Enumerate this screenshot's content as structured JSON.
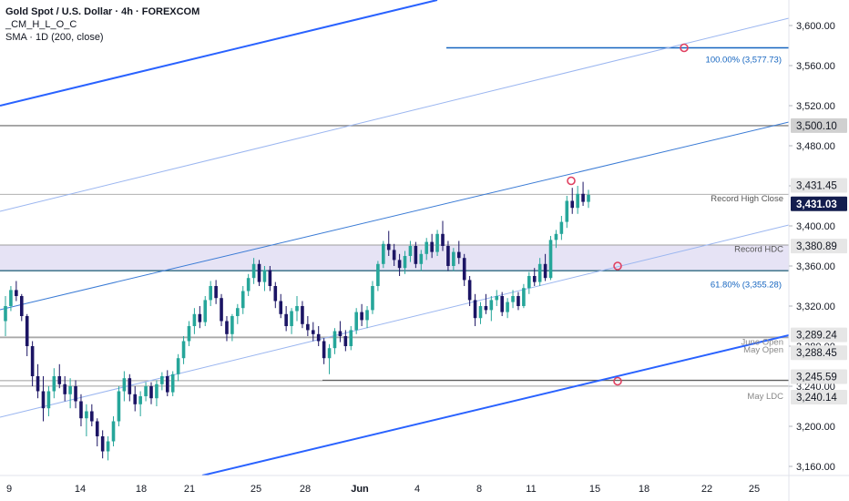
{
  "legend": {
    "title": "Gold Spot / U.S. Dollar · 4h · FOREXCOM",
    "indicator1": "_CM_H_L_O_C",
    "indicator2": "SMA · 1D (200, close)"
  },
  "colors": {
    "up": "#26a69a",
    "down": "#1b1464",
    "channel": "#2962ff",
    "fib": "#1565c0",
    "zone": "#e6e3f5",
    "levelLine": "#9e9e9e",
    "marker": "#e04060",
    "badgeDark": "#131d4e"
  },
  "chart_data": {
    "type": "candlestick",
    "instrument": "Gold Spot / U.S. Dollar",
    "timeframe": "4h",
    "ylim": [
      3140,
      3640
    ],
    "y_ticks": [
      3160,
      3200,
      3240,
      3280,
      3320,
      3360,
      3400,
      3440,
      3480,
      3520,
      3560,
      3600
    ],
    "y_tick_labels": [
      "3,160.00",
      "3,200.00",
      "3,240.00",
      "3,280.00",
      "3,320.00",
      "3,360.00",
      "3,400.00",
      "3,440.00",
      "3,480.00",
      "3,520.00",
      "3,560.00",
      "3,600.00"
    ],
    "x_tick_labels": [
      "9",
      "14",
      "18",
      "21",
      "25",
      "28",
      "Jun",
      "4",
      "8",
      "11",
      "15",
      "18",
      "22",
      "25"
    ],
    "zone": {
      "from": 3355.28,
      "to": 3380.89
    },
    "levels": [
      {
        "value": 3500.1,
        "label": "",
        "badge": "3,500.10",
        "style": "dark-gray"
      },
      {
        "value": 3431.45,
        "label": "Record High Close",
        "badge": "3,431.45",
        "style": "gray"
      },
      {
        "value": 3431.03,
        "label": "",
        "badge": "3,431.03",
        "style": "current"
      },
      {
        "value": 3380.89,
        "label": "Record HDC",
        "badge": "3,380.89",
        "style": "gray"
      },
      {
        "value": 3355.28,
        "label": "61.80% (3,355.28)",
        "badge": "",
        "style": "fib"
      },
      {
        "value": 3289.24,
        "label": "June Open",
        "badge": "3,289.24",
        "style": "gray"
      },
      {
        "value": 3288.45,
        "label": "May Open",
        "badge": "3,288.45",
        "style": "gray"
      },
      {
        "value": 3245.59,
        "label": "",
        "badge": "3,245.59",
        "style": "gray"
      },
      {
        "value": 3240.14,
        "label": "May LDC",
        "badge": "3,240.14",
        "style": "gray"
      },
      {
        "value": 3577.73,
        "label": "100.00% (3,577.73)",
        "badge": "",
        "style": "fib"
      }
    ],
    "ohlc": [
      [
        3305,
        3330,
        3290,
        3320
      ],
      [
        3320,
        3340,
        3315,
        3336
      ],
      [
        3336,
        3345,
        3325,
        3330
      ],
      [
        3330,
        3332,
        3305,
        3310
      ],
      [
        3310,
        3312,
        3270,
        3280
      ],
      [
        3280,
        3285,
        3240,
        3250
      ],
      [
        3250,
        3262,
        3228,
        3235
      ],
      [
        3235,
        3250,
        3205,
        3218
      ],
      [
        3218,
        3240,
        3210,
        3235
      ],
      [
        3235,
        3258,
        3228,
        3250
      ],
      [
        3250,
        3262,
        3238,
        3242
      ],
      [
        3242,
        3250,
        3225,
        3232
      ],
      [
        3232,
        3248,
        3218,
        3240
      ],
      [
        3240,
        3246,
        3218,
        3225
      ],
      [
        3225,
        3232,
        3200,
        3208
      ],
      [
        3208,
        3222,
        3190,
        3215
      ],
      [
        3215,
        3222,
        3200,
        3205
      ],
      [
        3205,
        3208,
        3180,
        3190
      ],
      [
        3190,
        3196,
        3168,
        3175
      ],
      [
        3175,
        3190,
        3166,
        3185
      ],
      [
        3185,
        3210,
        3180,
        3205
      ],
      [
        3205,
        3240,
        3200,
        3235
      ],
      [
        3235,
        3255,
        3225,
        3248
      ],
      [
        3248,
        3252,
        3225,
        3232
      ],
      [
        3232,
        3240,
        3215,
        3222
      ],
      [
        3222,
        3235,
        3210,
        3230
      ],
      [
        3230,
        3244,
        3225,
        3240
      ],
      [
        3240,
        3244,
        3222,
        3228
      ],
      [
        3228,
        3246,
        3220,
        3242
      ],
      [
        3242,
        3254,
        3236,
        3250
      ],
      [
        3250,
        3256,
        3230,
        3234
      ],
      [
        3234,
        3255,
        3230,
        3252
      ],
      [
        3252,
        3272,
        3245,
        3268
      ],
      [
        3268,
        3290,
        3262,
        3285
      ],
      [
        3285,
        3305,
        3280,
        3300
      ],
      [
        3300,
        3318,
        3292,
        3312
      ],
      [
        3312,
        3320,
        3298,
        3304
      ],
      [
        3304,
        3330,
        3300,
        3326
      ],
      [
        3326,
        3345,
        3320,
        3340
      ],
      [
        3340,
        3346,
        3322,
        3328
      ],
      [
        3328,
        3332,
        3300,
        3305
      ],
      [
        3305,
        3310,
        3285,
        3292
      ],
      [
        3292,
        3312,
        3285,
        3310
      ],
      [
        3310,
        3322,
        3302,
        3318
      ],
      [
        3318,
        3340,
        3312,
        3335
      ],
      [
        3335,
        3352,
        3330,
        3348
      ],
      [
        3348,
        3368,
        3342,
        3362
      ],
      [
        3362,
        3366,
        3340,
        3344
      ],
      [
        3344,
        3360,
        3335,
        3356
      ],
      [
        3356,
        3360,
        3335,
        3340
      ],
      [
        3340,
        3344,
        3318,
        3325
      ],
      [
        3325,
        3332,
        3308,
        3312
      ],
      [
        3312,
        3320,
        3295,
        3300
      ],
      [
        3300,
        3318,
        3292,
        3315
      ],
      [
        3315,
        3330,
        3305,
        3320
      ],
      [
        3320,
        3325,
        3298,
        3302
      ],
      [
        3302,
        3310,
        3290,
        3296
      ],
      [
        3296,
        3304,
        3285,
        3292
      ],
      [
        3292,
        3300,
        3280,
        3285
      ],
      [
        3285,
        3288,
        3262,
        3268
      ],
      [
        3268,
        3282,
        3252,
        3278
      ],
      [
        3278,
        3298,
        3272,
        3295
      ],
      [
        3295,
        3305,
        3284,
        3290
      ],
      [
        3290,
        3296,
        3275,
        3280
      ],
      [
        3280,
        3300,
        3276,
        3296
      ],
      [
        3296,
        3318,
        3292,
        3314
      ],
      [
        3314,
        3322,
        3300,
        3306
      ],
      [
        3306,
        3320,
        3298,
        3316
      ],
      [
        3316,
        3345,
        3312,
        3340
      ],
      [
        3340,
        3365,
        3335,
        3362
      ],
      [
        3362,
        3385,
        3358,
        3382
      ],
      [
        3382,
        3395,
        3370,
        3376
      ],
      [
        3376,
        3382,
        3360,
        3366
      ],
      [
        3366,
        3372,
        3350,
        3358
      ],
      [
        3358,
        3375,
        3352,
        3370
      ],
      [
        3370,
        3385,
        3364,
        3380
      ],
      [
        3380,
        3384,
        3358,
        3362
      ],
      [
        3362,
        3376,
        3355,
        3372
      ],
      [
        3372,
        3388,
        3366,
        3384
      ],
      [
        3384,
        3392,
        3368,
        3374
      ],
      [
        3374,
        3396,
        3370,
        3392
      ],
      [
        3392,
        3405,
        3375,
        3380
      ],
      [
        3380,
        3385,
        3355,
        3360
      ],
      [
        3360,
        3378,
        3355,
        3374
      ],
      [
        3374,
        3385,
        3362,
        3368
      ],
      [
        3368,
        3372,
        3340,
        3346
      ],
      [
        3346,
        3350,
        3320,
        3326
      ],
      [
        3326,
        3332,
        3300,
        3308
      ],
      [
        3308,
        3324,
        3302,
        3320
      ],
      [
        3320,
        3332,
        3312,
        3316
      ],
      [
        3316,
        3330,
        3305,
        3326
      ],
      [
        3326,
        3336,
        3320,
        3330
      ],
      [
        3330,
        3334,
        3310,
        3314
      ],
      [
        3314,
        3328,
        3308,
        3324
      ],
      [
        3324,
        3336,
        3318,
        3330
      ],
      [
        3330,
        3334,
        3316,
        3320
      ],
      [
        3320,
        3342,
        3318,
        3338
      ],
      [
        3338,
        3354,
        3332,
        3350
      ],
      [
        3350,
        3358,
        3340,
        3344
      ],
      [
        3344,
        3368,
        3340,
        3362
      ],
      [
        3362,
        3372,
        3345,
        3348
      ],
      [
        3348,
        3390,
        3346,
        3386
      ],
      [
        3386,
        3396,
        3378,
        3392
      ],
      [
        3392,
        3410,
        3386,
        3404
      ],
      [
        3404,
        3430,
        3398,
        3425
      ],
      [
        3425,
        3438,
        3412,
        3418
      ],
      [
        3418,
        3440,
        3412,
        3432
      ],
      [
        3432,
        3444,
        3420,
        3424
      ],
      [
        3424,
        3436,
        3418,
        3431
      ]
    ]
  }
}
